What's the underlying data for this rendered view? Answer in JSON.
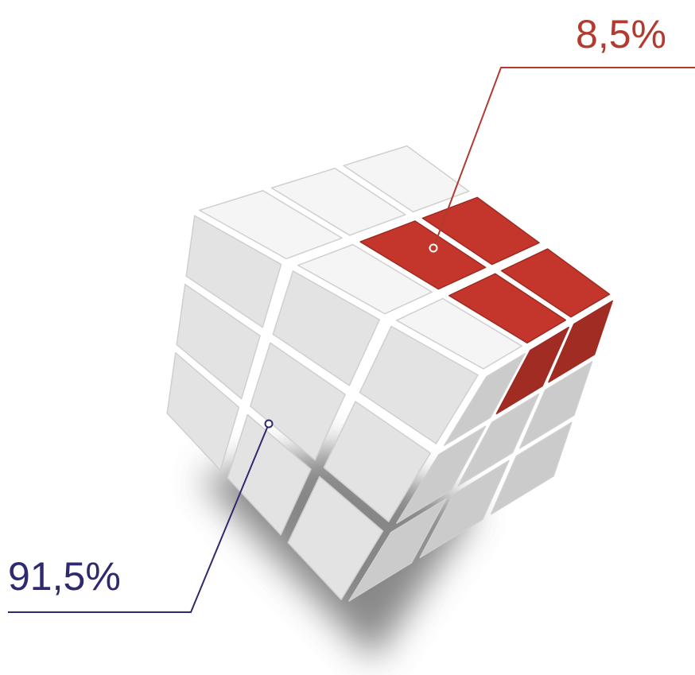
{
  "chart_data": {
    "type": "cube",
    "values": [
      91.5,
      8.5
    ],
    "value_labels": [
      "91,5%",
      "8,5%"
    ],
    "colors": [
      "#ececec",
      "#c4362b"
    ],
    "label_colors": [
      "#2e2a6e",
      "#b23a2e"
    ]
  }
}
